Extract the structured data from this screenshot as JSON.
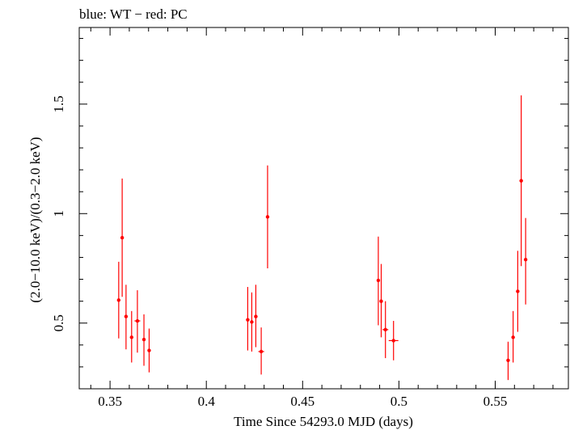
{
  "chart_data": {
    "type": "scatter",
    "title": "blue: WT − red: PC",
    "xlabel": "Time Since 54293.0 MJD (days)",
    "ylabel": "(2.0−10.0 keV)/(0.3−2.0 keV)",
    "xlim": [
      0.334,
      0.588
    ],
    "ylim": [
      0.2,
      1.85
    ],
    "xticks": [
      0.35,
      0.4,
      0.45,
      0.5,
      0.55
    ],
    "xtick_labels": [
      "0.35",
      "0.4",
      "0.45",
      "0.5",
      "0.55"
    ],
    "yticks": [
      0.5,
      1.0,
      1.5
    ],
    "ytick_labels": [
      "0.5",
      "1",
      "1.5"
    ],
    "grid": false,
    "series": [
      {
        "name": "PC",
        "color": "#ff0000",
        "points": [
          {
            "x": 0.3545,
            "y": 0.605,
            "xerr": 0.0008,
            "ylo": 0.43,
            "yhi": 0.78
          },
          {
            "x": 0.3563,
            "y": 0.89,
            "xerr": 0.0008,
            "ylo": 0.62,
            "yhi": 1.16
          },
          {
            "x": 0.3583,
            "y": 0.53,
            "xerr": 0.0008,
            "ylo": 0.38,
            "yhi": 0.675
          },
          {
            "x": 0.3612,
            "y": 0.435,
            "xerr": 0.0008,
            "ylo": 0.32,
            "yhi": 0.555
          },
          {
            "x": 0.3642,
            "y": 0.51,
            "xerr": 0.0015,
            "ylo": 0.365,
            "yhi": 0.65
          },
          {
            "x": 0.3676,
            "y": 0.425,
            "xerr": 0.0008,
            "ylo": 0.305,
            "yhi": 0.54
          },
          {
            "x": 0.3703,
            "y": 0.375,
            "xerr": 0.0008,
            "ylo": 0.275,
            "yhi": 0.475
          },
          {
            "x": 0.4215,
            "y": 0.515,
            "xerr": 0.0008,
            "ylo": 0.375,
            "yhi": 0.665
          },
          {
            "x": 0.4236,
            "y": 0.505,
            "xerr": 0.0008,
            "ylo": 0.37,
            "yhi": 0.64
          },
          {
            "x": 0.4257,
            "y": 0.53,
            "xerr": 0.0008,
            "ylo": 0.39,
            "yhi": 0.675
          },
          {
            "x": 0.4285,
            "y": 0.37,
            "xerr": 0.0015,
            "ylo": 0.265,
            "yhi": 0.48
          },
          {
            "x": 0.4318,
            "y": 0.985,
            "xerr": 0.0008,
            "ylo": 0.75,
            "yhi": 1.22
          },
          {
            "x": 0.4893,
            "y": 0.695,
            "xerr": 0.0008,
            "ylo": 0.49,
            "yhi": 0.895
          },
          {
            "x": 0.4908,
            "y": 0.6,
            "xerr": 0.0008,
            "ylo": 0.435,
            "yhi": 0.77
          },
          {
            "x": 0.493,
            "y": 0.47,
            "xerr": 0.0015,
            "ylo": 0.34,
            "yhi": 0.6
          },
          {
            "x": 0.4972,
            "y": 0.42,
            "xerr": 0.0025,
            "ylo": 0.33,
            "yhi": 0.51
          },
          {
            "x": 0.5567,
            "y": 0.33,
            "xerr": 0.0008,
            "ylo": 0.24,
            "yhi": 0.415
          },
          {
            "x": 0.5593,
            "y": 0.435,
            "xerr": 0.0008,
            "ylo": 0.32,
            "yhi": 0.555
          },
          {
            "x": 0.5617,
            "y": 0.645,
            "xerr": 0.0008,
            "ylo": 0.46,
            "yhi": 0.83
          },
          {
            "x": 0.5635,
            "y": 1.15,
            "xerr": 0.0008,
            "ylo": 0.76,
            "yhi": 1.54
          },
          {
            "x": 0.5658,
            "y": 0.79,
            "xerr": 0.0008,
            "ylo": 0.585,
            "yhi": 0.98
          }
        ]
      }
    ]
  }
}
